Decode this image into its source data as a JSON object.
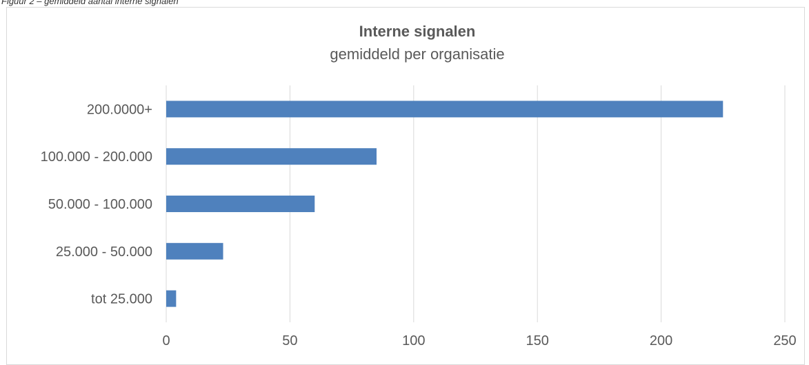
{
  "caption": "Figuur 2 – gemiddeld aantal interne signalen",
  "colors": {
    "bar": "#4f81bd",
    "grid": "#d9d9d9",
    "text": "#595959"
  },
  "chart_data": {
    "type": "bar",
    "orientation": "horizontal",
    "title": "Interne signalen",
    "subtitle": "gemiddeld per organisatie",
    "xlabel": "",
    "ylabel": "",
    "categories": [
      "200.0000+",
      "100.000 - 200.000",
      "50.000 - 100.000",
      "25.000 - 50.000",
      "tot 25.000"
    ],
    "values": [
      225,
      85,
      60,
      23,
      4
    ],
    "xlim": [
      0,
      250
    ],
    "xticks": [
      0,
      50,
      100,
      150,
      200,
      250
    ],
    "grid": true,
    "legend": "none"
  }
}
